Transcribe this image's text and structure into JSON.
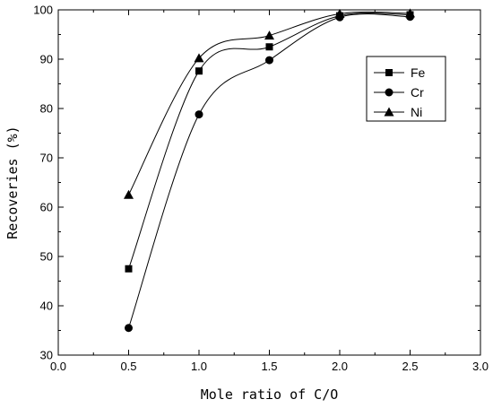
{
  "chart_data": {
    "type": "scatter",
    "title": "",
    "xlabel": "Mole ratio of C/O",
    "ylabel": "Recoveries  (%)",
    "xlim": [
      0.0,
      3.0
    ],
    "ylim": [
      30,
      100
    ],
    "xticks": [
      "0.0",
      "0.5",
      "1.0",
      "1.5",
      "2.0",
      "2.5",
      "3.0"
    ],
    "yticks": [
      "30",
      "40",
      "50",
      "60",
      "70",
      "80",
      "90",
      "100"
    ],
    "xtick_values": [
      0.0,
      0.5,
      1.0,
      1.5,
      2.0,
      2.5,
      3.0
    ],
    "ytick_values": [
      30,
      40,
      50,
      60,
      70,
      80,
      90,
      100
    ],
    "grid": false,
    "legend_position": "top-right",
    "series": [
      {
        "name": "Fe",
        "marker": "square",
        "x": [
          0.5,
          1.0,
          1.5,
          2.0,
          2.5
        ],
        "y": [
          47.5,
          87.6,
          92.5,
          98.8,
          99.0
        ]
      },
      {
        "name": "Cr",
        "marker": "circle",
        "x": [
          0.5,
          1.0,
          1.5,
          2.0,
          2.5
        ],
        "y": [
          35.5,
          78.8,
          89.8,
          98.5,
          98.6
        ]
      },
      {
        "name": "Ni",
        "marker": "triangle",
        "x": [
          0.5,
          1.0,
          1.5,
          2.0,
          2.5
        ],
        "y": [
          62.5,
          90.2,
          94.8,
          99.2,
          99.3
        ]
      }
    ]
  }
}
